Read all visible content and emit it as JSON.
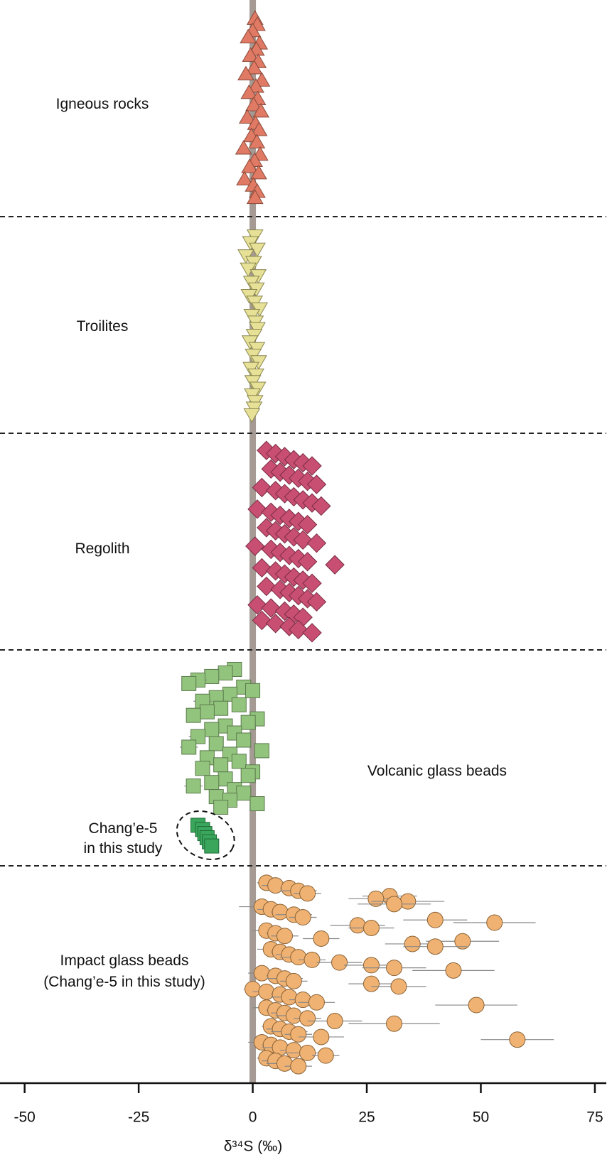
{
  "chart_data": {
    "type": "strip",
    "xlabel": "δ³⁴S (‰)",
    "xlim": [
      -55.4,
      77.5
    ],
    "xticks": [
      -50,
      -25,
      0,
      25,
      50,
      75
    ],
    "refline": {
      "value": 0,
      "color": "#a59a94"
    },
    "series": [
      {
        "label": [
          "Igneous rocks"
        ],
        "marker": "triangle-up",
        "color": "#e07a64",
        "stroke": "#8a4a3a",
        "values": [
          0.5,
          1,
          0,
          -1,
          1.5,
          0.8,
          -0.5,
          1.2,
          0.3,
          -1.5,
          2,
          0.7,
          -0.8,
          1.1,
          0.2,
          1.8,
          -1.2,
          0.6,
          1.4,
          -0.3,
          0.9,
          -2,
          1.6,
          0.4,
          -0.7,
          1.3,
          -1.8,
          0.1,
          1,
          0.5
        ]
      },
      {
        "label": [
          "Troilites"
        ],
        "marker": "triangle-down",
        "color": "#e6e196",
        "stroke": "#8a8650",
        "values": [
          0.5,
          -0.5,
          1,
          -1.5,
          0.2,
          -1,
          1.2,
          -0.3,
          0.8,
          -0.8,
          0.4,
          1.5,
          -0.2,
          0.6,
          1,
          0.3,
          -0.6,
          0.9,
          0.1,
          1.3,
          -0.4,
          0.7,
          0,
          1.1,
          -0.1,
          0.5,
          0.3,
          -0.2
        ]
      },
      {
        "label": [
          "Regolith"
        ],
        "marker": "diamond",
        "color": "#c84f72",
        "stroke": "#7a2c44",
        "values": [
          3,
          5,
          7,
          9,
          11,
          13,
          4,
          6,
          8,
          10,
          12,
          14,
          2,
          5,
          7,
          9,
          11,
          13,
          15,
          1,
          4,
          6,
          8,
          10,
          12,
          3,
          5,
          7,
          9,
          11,
          14,
          0.5,
          4,
          6,
          8,
          10,
          12,
          18,
          2,
          5,
          7,
          9,
          11,
          13,
          3,
          6,
          8,
          10,
          12,
          14,
          1,
          4,
          7,
          9,
          11,
          2,
          5,
          8,
          10,
          13
        ]
      },
      {
        "label": [
          "Volcanic glass beads"
        ],
        "marker": "square",
        "color": "#93c47d",
        "stroke": "#5a7a4c",
        "values": [
          -4,
          -6,
          -9,
          -12,
          -14,
          -2,
          0,
          -5,
          -8,
          -11,
          -3,
          -7,
          -10,
          -13,
          1,
          -1,
          -6,
          -9,
          -4,
          -12,
          -2,
          -8,
          -14,
          2,
          -5,
          -10,
          -3,
          -7,
          -11,
          0,
          -1,
          -6,
          -9,
          -13,
          -4,
          -2,
          -8,
          -5,
          1,
          -7
        ],
        "errors": [
          1,
          1.5,
          1,
          2,
          1.5,
          1,
          1,
          1.5,
          1,
          2,
          1,
          1.5,
          1,
          1.5,
          1,
          1,
          1.5,
          1,
          1,
          2,
          1,
          1.5,
          2,
          1,
          1,
          1.5,
          1,
          1,
          1.5,
          1,
          1,
          1,
          1.5,
          2,
          1,
          1,
          1.5,
          1,
          1,
          1.5
        ],
        "highlight": {
          "label": [
            "Chang’e-5",
            "in this study"
          ],
          "color": "#3aa65b",
          "stroke": "#1f6a38",
          "values": [
            -12,
            -11,
            -10.5,
            -10,
            -9.5,
            -9
          ],
          "errors": [
            0.5,
            0.5,
            0.5,
            0.5,
            0.5,
            0.5
          ]
        }
      },
      {
        "label": [
          "Impact glass beads",
          "(Chang’e-5 in this study)"
        ],
        "marker": "circle",
        "color": "#f0b272",
        "stroke": "#8a6236",
        "values": [
          3,
          5,
          8,
          10,
          12,
          30,
          27,
          34,
          31,
          2,
          4,
          6,
          9,
          11,
          40,
          53,
          23,
          26,
          3,
          5,
          7,
          15,
          46,
          35,
          40,
          4,
          6,
          8,
          10,
          13,
          19,
          26,
          31,
          44,
          2,
          5,
          7,
          9,
          26,
          32,
          0,
          3,
          6,
          8,
          11,
          14,
          49,
          3,
          5,
          7,
          9,
          12,
          18,
          31,
          4,
          6,
          8,
          10,
          15,
          58,
          2,
          4,
          6,
          9,
          12,
          16,
          3,
          5,
          7,
          10
        ],
        "errors": [
          2,
          3,
          2,
          4,
          3,
          6,
          6,
          8,
          8,
          5,
          3,
          2,
          4,
          3,
          7,
          9,
          6,
          5,
          3,
          2,
          3,
          4,
          8,
          6,
          7,
          3,
          2,
          3,
          4,
          3,
          5,
          6,
          7,
          9,
          3,
          2,
          4,
          3,
          5,
          6,
          2,
          3,
          2,
          4,
          3,
          4,
          9,
          3,
          2,
          3,
          4,
          3,
          6,
          10,
          2,
          3,
          4,
          3,
          5,
          8,
          3,
          2,
          4,
          3,
          5,
          3,
          2,
          3,
          4,
          3
        ]
      }
    ]
  }
}
